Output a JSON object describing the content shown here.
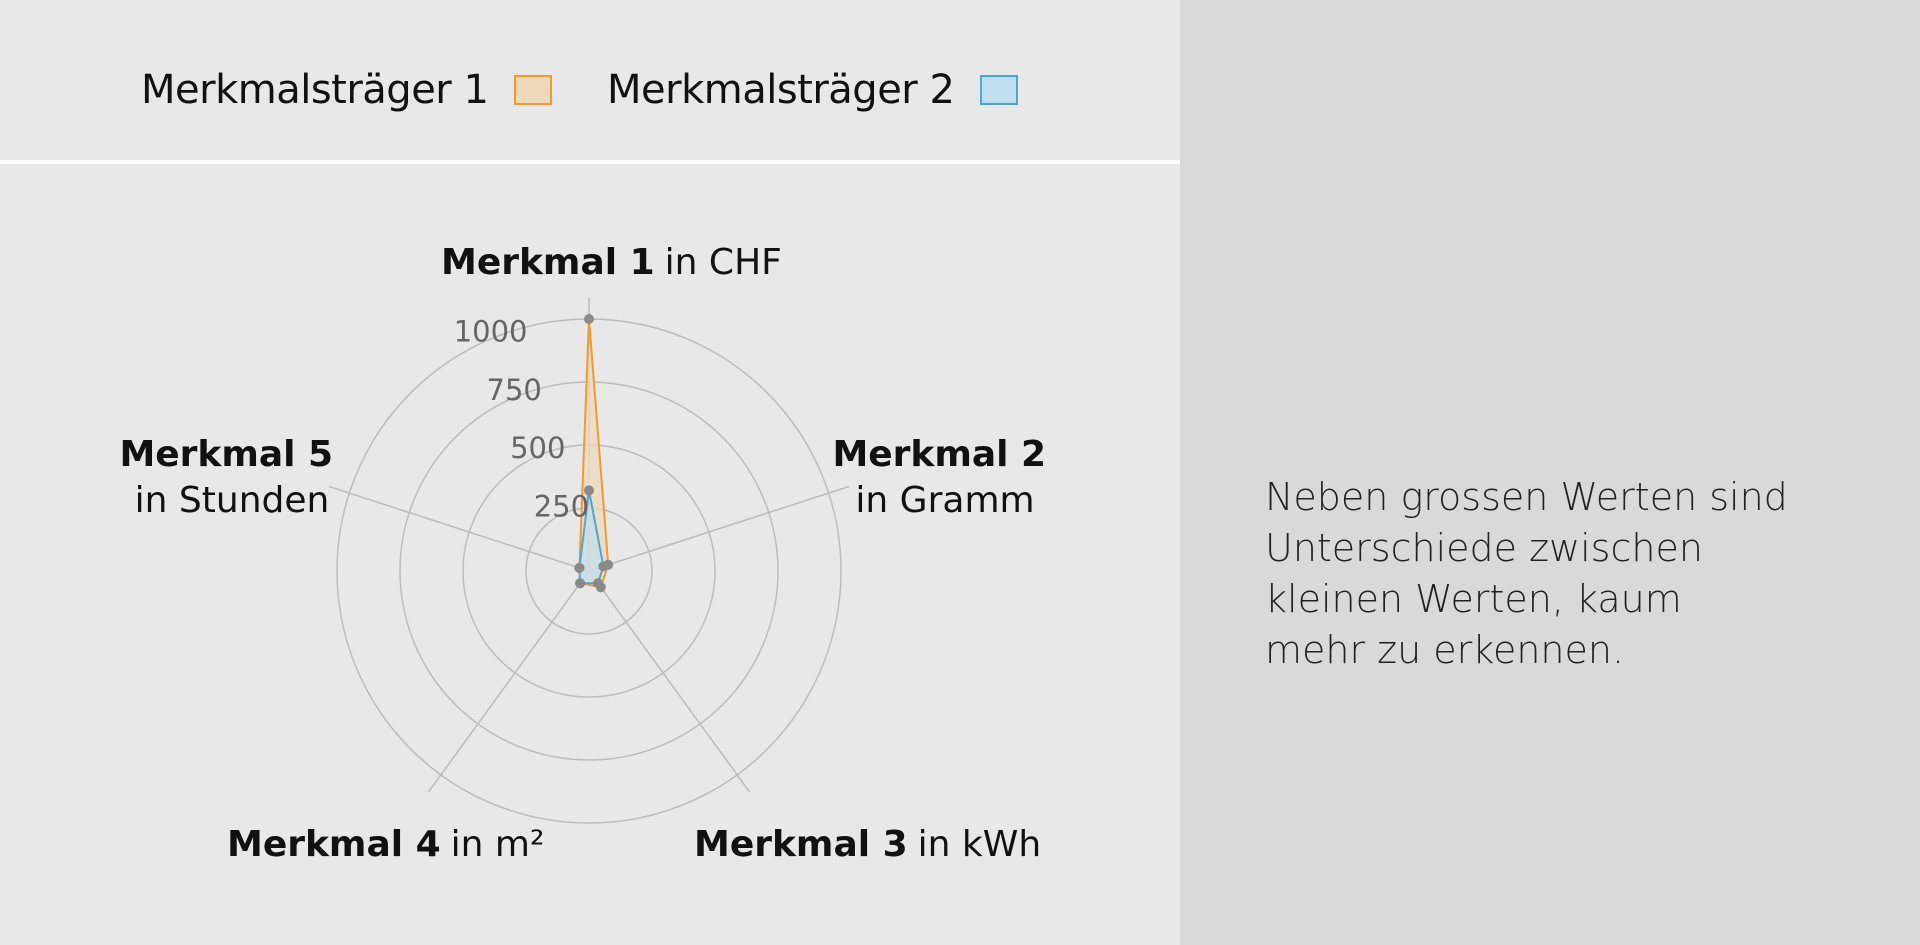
{
  "legend": {
    "items": [
      {
        "label": "Merkmalsträger 1",
        "color": "#f29a2e",
        "fill": "#efd9bd"
      },
      {
        "label": "Merkmalsträger 2",
        "color": "#4aa8d8",
        "fill": "#bfdfee"
      }
    ]
  },
  "note": {
    "lines": [
      "Neben grossen Werten sind",
      "Unterschiede zwischen",
      "kleinen Werten, kaum",
      "mehr zu erkennen."
    ]
  },
  "chart_data": {
    "type": "radar",
    "rmax": 1000,
    "ticks": [
      250,
      500,
      750,
      1000
    ],
    "tick_labels": [
      "250",
      "500",
      "750",
      "1000"
    ],
    "axes": [
      {
        "name": "Merkmal 1",
        "unit": "in CHF"
      },
      {
        "name": "Merkmal 2",
        "unit": "in Gramm"
      },
      {
        "name": "Merkmal 3",
        "unit": "in kWh"
      },
      {
        "name": "Merkmal 4",
        "unit": "in m²"
      },
      {
        "name": "Merkmal 5",
        "unit": "in Stunden"
      }
    ],
    "series": [
      {
        "name": "Merkmalsträger 1",
        "values": [
          1000,
          80,
          80,
          60,
          40
        ]
      },
      {
        "name": "Merkmalsträger 2",
        "values": [
          320,
          60,
          60,
          60,
          40
        ]
      }
    ]
  }
}
